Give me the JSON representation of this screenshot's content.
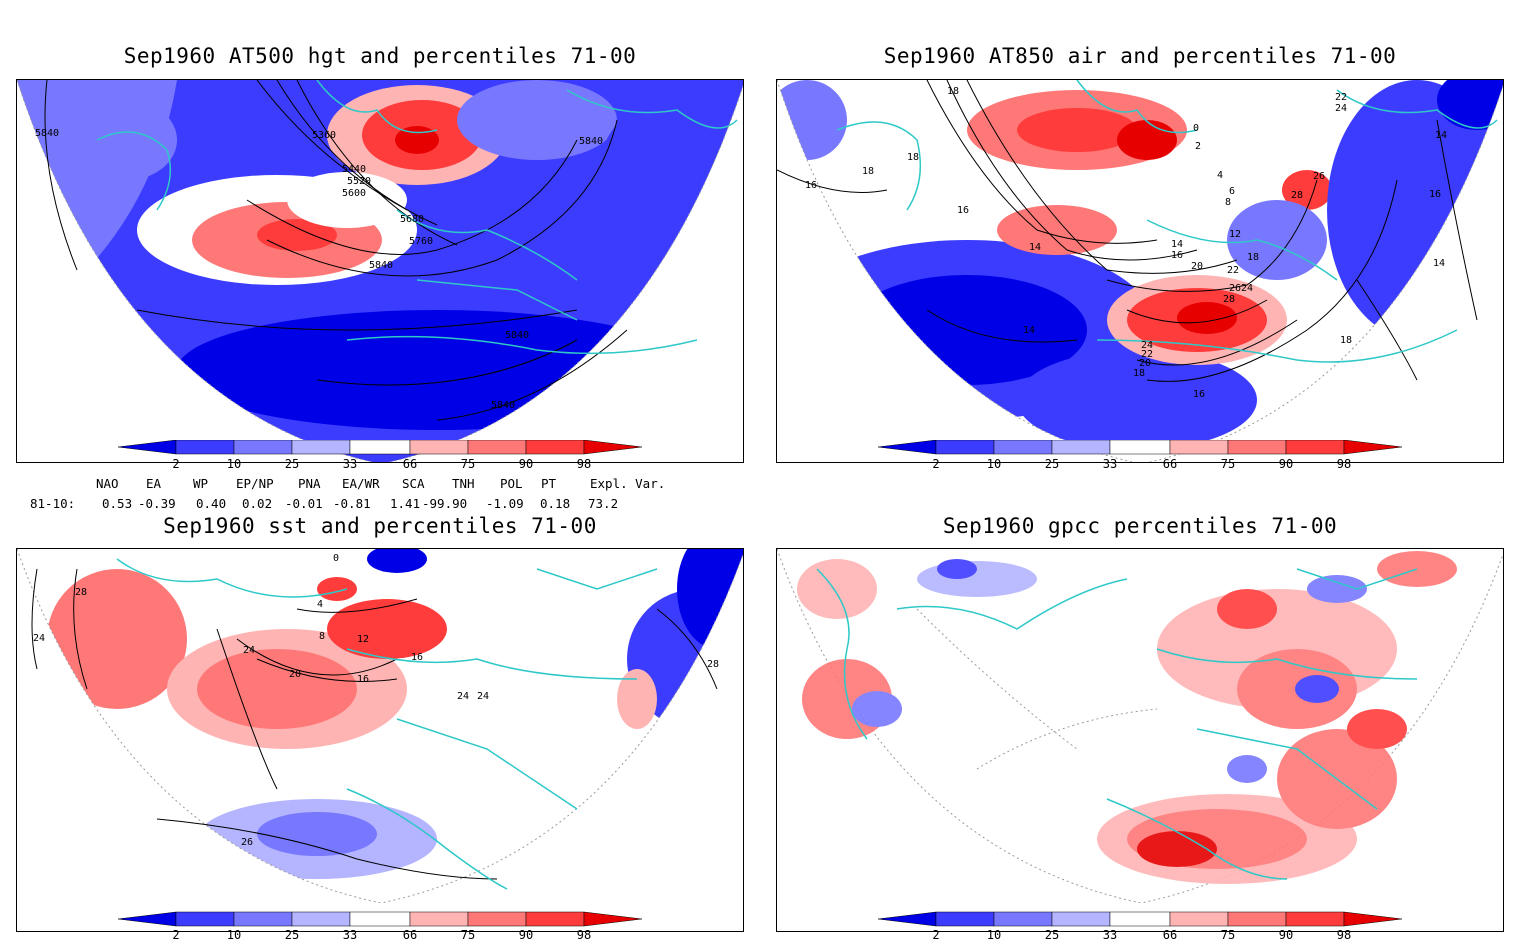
{
  "panels": [
    {
      "title": "Sep1960 AT500 hgt and percentiles 71-00",
      "contour_labels": [
        "5840",
        "5360",
        "5440",
        "5520",
        "5600",
        "5680",
        "5760",
        "5840",
        "5840",
        "5840",
        "5840"
      ]
    },
    {
      "title": "Sep1960 AT850 air and percentiles 71-00",
      "contour_labels": [
        "18",
        "18",
        "18",
        "16",
        "16",
        "14",
        "14",
        "12",
        "14",
        "16",
        "18",
        "20",
        "22",
        "24",
        "26",
        "28",
        "24",
        "22",
        "20",
        "18",
        "16",
        "18",
        "14",
        "14",
        "16",
        "22",
        "24",
        "26",
        "28",
        "0",
        "2",
        "4",
        "6",
        "8"
      ]
    },
    {
      "title": "Sep1960 sst and percentiles 71-00",
      "contour_labels": [
        "28",
        "24",
        "24",
        "20",
        "16",
        "12",
        "8",
        "4",
        "0",
        "26",
        "24",
        "24",
        "16",
        "28"
      ]
    },
    {
      "title": "Sep1960 gpcc percentiles 71-00",
      "contour_labels": []
    }
  ],
  "colorbar": {
    "labels": [
      "2",
      "10",
      "25",
      "33",
      "66",
      "75",
      "90",
      "98"
    ],
    "colors": {
      "d1": "#0000e6",
      "d2": "#3c3cff",
      "d3": "#7878ff",
      "d4": "#b4b4ff",
      "w": "#ffffff",
      "r1": "#ffb4b4",
      "r2": "#ff7878",
      "r3": "#ff3c3c",
      "r4": "#e60000"
    }
  },
  "indices": {
    "headers": [
      "NAO",
      "EA",
      "WP",
      "EP/NP",
      "PNA",
      "EA/WR",
      "SCA",
      "TNH",
      "POL",
      "PT",
      "Expl. Var."
    ],
    "row_label": "81-10:",
    "values": [
      "0.53",
      "-0.39",
      "0.40",
      "0.02",
      "-0.01",
      "-0.81",
      "1.41",
      "-99.90",
      "-1.09",
      "0.18",
      "73.2"
    ]
  },
  "colors": {
    "coast": "#2ec8c8",
    "contour": "#000000",
    "grid": "#9a9a9a"
  }
}
